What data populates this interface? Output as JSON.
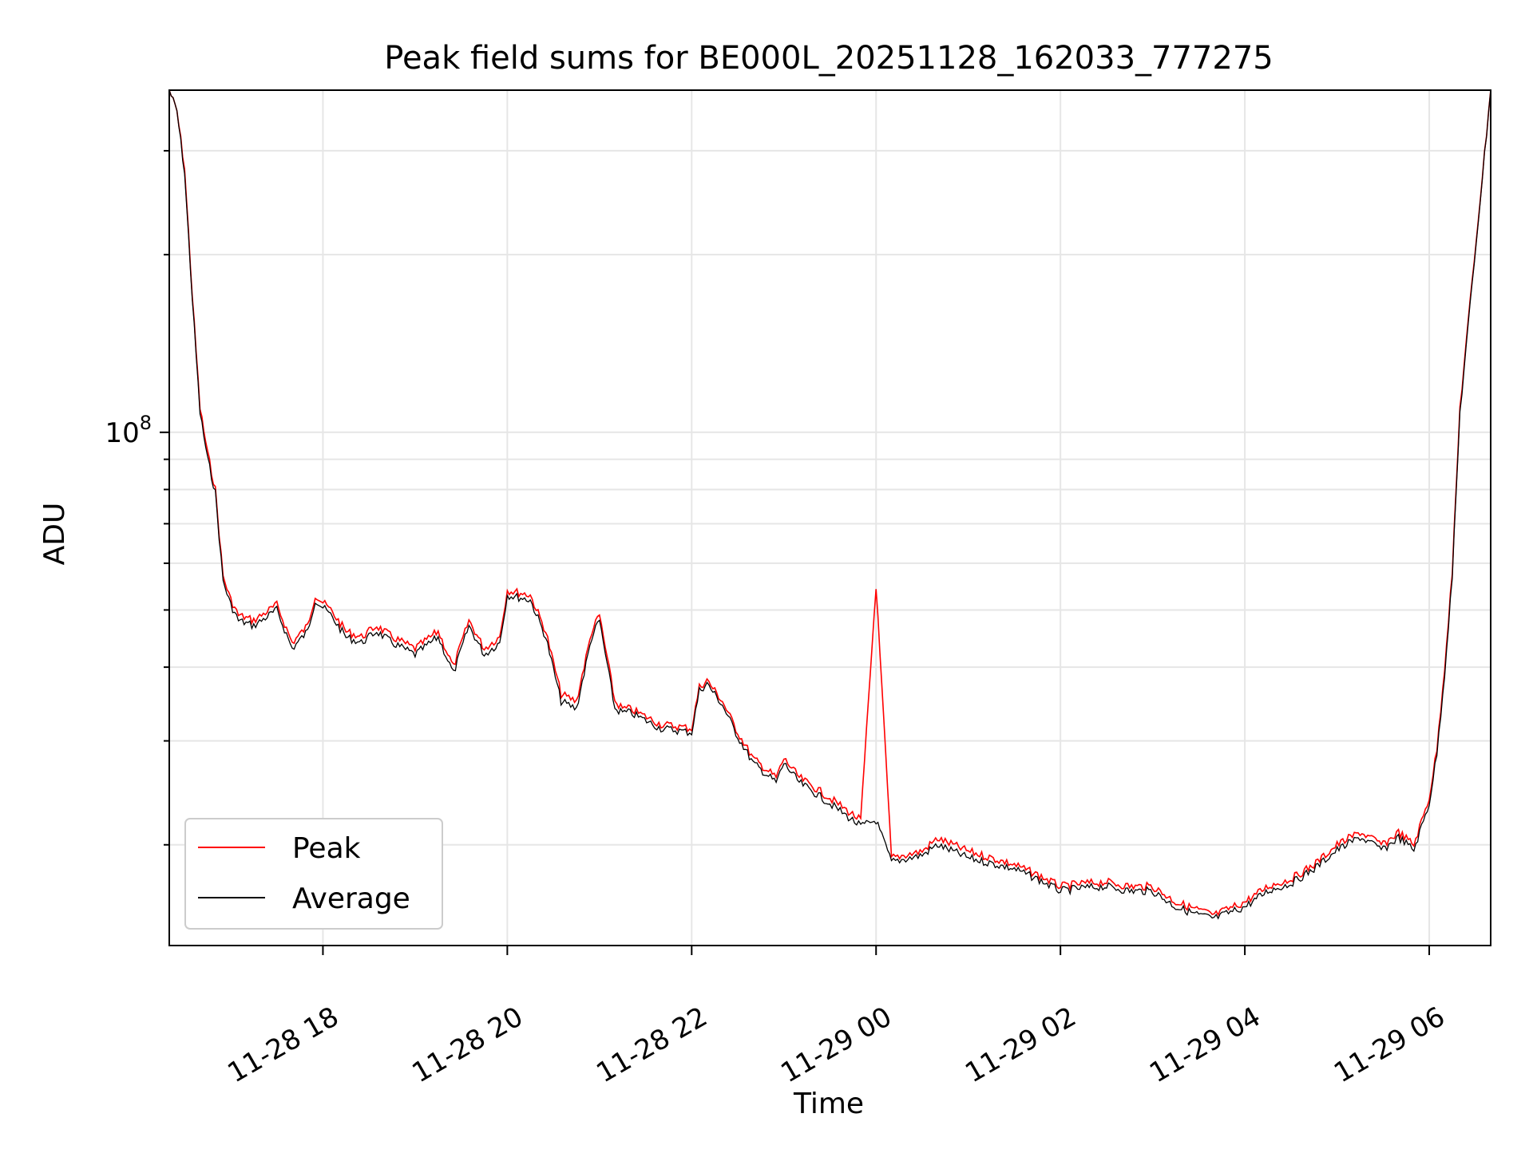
{
  "chart_data": {
    "type": "line",
    "title": "Peak field sums for BE000L_20251128_162033_777275",
    "xlabel": "Time",
    "ylabel": "ADU",
    "yscale": "log",
    "ylim": [
      13500000,
      380000000
    ],
    "xlim": [
      "2025-11-28 16:20",
      "2025-11-29 06:40"
    ],
    "x_ticks": [
      {
        "at": "2025-11-28 18:00",
        "label": "11-28 18"
      },
      {
        "at": "2025-11-28 20:00",
        "label": "11-28 20"
      },
      {
        "at": "2025-11-28 22:00",
        "label": "11-28 22"
      },
      {
        "at": "2025-11-29 00:00",
        "label": "11-29 00"
      },
      {
        "at": "2025-11-29 02:00",
        "label": "11-29 02"
      },
      {
        "at": "2025-11-29 04:00",
        "label": "11-29 04"
      },
      {
        "at": "2025-11-29 06:00",
        "label": "11-29 06"
      }
    ],
    "y_major_tick": {
      "value": 100000000,
      "label_base": "10",
      "label_exp": "8"
    },
    "grid": true,
    "legend": "lower-left",
    "x": [
      "2025-11-28 16:20",
      "2025-11-28 16:25",
      "2025-11-28 16:30",
      "2025-11-28 16:35",
      "2025-11-28 16:40",
      "2025-11-28 16:45",
      "2025-11-28 16:50",
      "2025-11-28 16:55",
      "2025-11-28 17:00",
      "2025-11-28 17:05",
      "2025-11-28 17:15",
      "2025-11-28 17:30",
      "2025-11-28 17:40",
      "2025-11-28 17:50",
      "2025-11-28 17:55",
      "2025-11-28 18:05",
      "2025-11-28 18:15",
      "2025-11-28 18:25",
      "2025-11-28 18:35",
      "2025-11-28 18:45",
      "2025-11-28 19:00",
      "2025-11-28 19:15",
      "2025-11-28 19:25",
      "2025-11-28 19:35",
      "2025-11-28 19:45",
      "2025-11-28 19:55",
      "2025-11-28 20:00",
      "2025-11-28 20:15",
      "2025-11-28 20:25",
      "2025-11-28 20:35",
      "2025-11-28 20:45",
      "2025-11-28 20:55",
      "2025-11-28 21:00",
      "2025-11-28 21:10",
      "2025-11-28 21:15",
      "2025-11-28 21:20",
      "2025-11-28 21:40",
      "2025-11-28 22:00",
      "2025-11-28 22:05",
      "2025-11-28 22:10",
      "2025-11-28 22:20",
      "2025-11-28 22:30",
      "2025-11-28 22:40",
      "2025-11-28 22:55",
      "2025-11-28 23:00",
      "2025-11-28 23:10",
      "2025-11-28 23:20",
      "2025-11-28 23:30",
      "2025-11-28 23:50",
      "2025-11-29 00:00",
      "2025-11-29 00:10",
      "2025-11-29 00:30",
      "2025-11-29 00:40",
      "2025-11-29 00:50",
      "2025-11-29 01:00",
      "2025-11-29 01:15",
      "2025-11-29 01:30",
      "2025-11-29 01:45",
      "2025-11-29 02:00",
      "2025-11-29 02:15",
      "2025-11-29 02:30",
      "2025-11-29 02:45",
      "2025-11-29 03:00",
      "2025-11-29 03:15",
      "2025-11-29 03:30",
      "2025-11-29 03:40",
      "2025-11-29 04:00",
      "2025-11-29 04:15",
      "2025-11-29 04:30",
      "2025-11-29 04:45",
      "2025-11-29 05:00",
      "2025-11-29 05:15",
      "2025-11-29 05:30",
      "2025-11-29 05:40",
      "2025-11-29 05:50",
      "2025-11-29 06:00",
      "2025-11-29 06:05",
      "2025-11-29 06:10",
      "2025-11-29 06:15",
      "2025-11-29 06:20",
      "2025-11-29 06:40"
    ],
    "series": [
      {
        "name": "Peak",
        "color": "#ff0000",
        "values": [
          380000000,
          350000000,
          280000000,
          170000000,
          110000000,
          92000000,
          80000000,
          57000000,
          52000000,
          49000000,
          48000000,
          51000000,
          44000000,
          47000000,
          53000000,
          50000000,
          46000000,
          45000000,
          47000000,
          45000000,
          43000000,
          46000000,
          40000000,
          48000000,
          43000000,
          45000000,
          54000000,
          53000000,
          46000000,
          36000000,
          35000000,
          46000000,
          49000000,
          35000000,
          34000000,
          34000000,
          32000000,
          31500000,
          37000000,
          38000000,
          35000000,
          31000000,
          28000000,
          26000000,
          28000000,
          26000000,
          25000000,
          24000000,
          22000000,
          55000000,
          19000000,
          19500000,
          20500000,
          20000000,
          19500000,
          19000000,
          18500000,
          17800000,
          17000000,
          17200000,
          17300000,
          17000000,
          17000000,
          16000000,
          15500000,
          15200000,
          16000000,
          17000000,
          17500000,
          18500000,
          20000000,
          21000000,
          20000000,
          21000000,
          20000000,
          24000000,
          29000000,
          40000000,
          58000000,
          110000000,
          380000000
        ]
      },
      {
        "name": "Average",
        "color": "#000000",
        "values": [
          380000000,
          350000000,
          275000000,
          168000000,
          108000000,
          90000000,
          79000000,
          56000000,
          51000000,
          48000000,
          47000000,
          50000000,
          43000000,
          46000000,
          52000000,
          49000000,
          45000000,
          44000000,
          46000000,
          44000000,
          42000000,
          45000000,
          39000000,
          47000000,
          42000000,
          44000000,
          53000000,
          52000000,
          45000000,
          35000000,
          34000000,
          45000000,
          48000000,
          34000000,
          33500000,
          33500000,
          31500000,
          31000000,
          36500000,
          37500000,
          34500000,
          30500000,
          27500000,
          25500000,
          27500000,
          25500000,
          24500000,
          23500000,
          21500000,
          22000000,
          18700000,
          19200000,
          20000000,
          19500000,
          19000000,
          18600000,
          18200000,
          17500000,
          16700000,
          16900000,
          17000000,
          16700000,
          16700000,
          15700000,
          15200000,
          15000000,
          15700000,
          16700000,
          17200000,
          18200000,
          19600000,
          20600000,
          19600000,
          20600000,
          19600000,
          23500000,
          28500000,
          39000000,
          57000000,
          108000000,
          380000000
        ]
      }
    ]
  }
}
